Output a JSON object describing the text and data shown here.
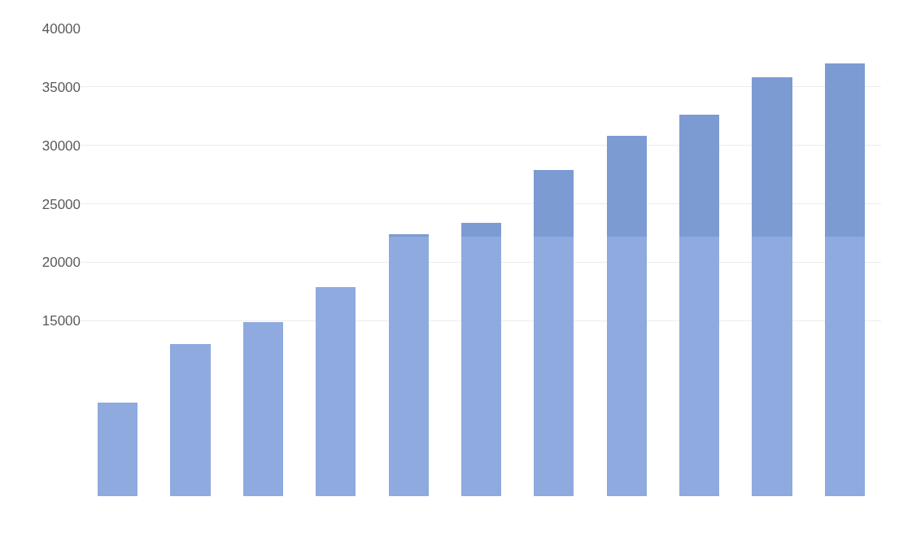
{
  "chart_data": {
    "type": "bar",
    "stacked": true,
    "categories": [
      null,
      null,
      null,
      null,
      null,
      null,
      null,
      null,
      null,
      null,
      null
    ],
    "series": [
      {
        "color": "#8eaadf",
        "values": [
          8000,
          13000,
          14900,
          17900,
          22200,
          22200,
          22200,
          22200,
          22200,
          22200,
          22200
        ]
      },
      {
        "color": "#7b9bd2",
        "values": [
          null,
          null,
          null,
          null,
          200,
          1200,
          5700,
          8600,
          10400,
          13600,
          14800
        ]
      }
    ],
    "ylim": [
      0,
      40000
    ],
    "yticks": [
      15000,
      20000,
      25000,
      30000,
      35000,
      40000
    ],
    "grid": "y"
  }
}
